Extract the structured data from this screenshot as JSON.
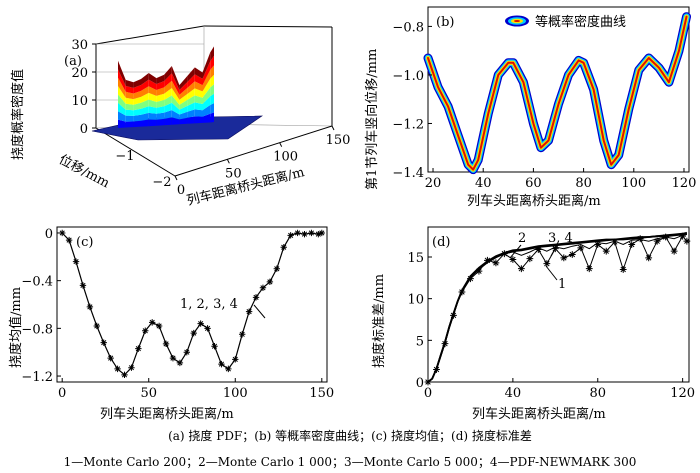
{
  "figure_caption": "(a) 挠度 PDF；(b) 等概率密度曲线；(c) 挠度均值；(d) 挠度标准差",
  "legend_caption": "1—Monte Carlo 200；2—Monte Carlo 1 000；3—Monte Carlo 5 000；4—PDF-NEWMARK 300",
  "colors": {
    "jet": [
      "#00008f",
      "#0000ff",
      "#0080ff",
      "#00ffff",
      "#80ff80",
      "#ffff00",
      "#ff8000",
      "#ff0000",
      "#800000"
    ],
    "band_outer": "#0000cc",
    "band_mid": "#00ccff",
    "band_inner": "#ffdd00",
    "band_core": "#dd1100",
    "line": "#000000"
  },
  "chart_data": [
    {
      "id": "a",
      "panel_label": "(a)",
      "type": "surface3d",
      "zlabel": "挠度概率密度值",
      "ylabel": "位移/mm",
      "xlabel": "列车距离桥头距离/m",
      "z_ticks": [
        "0",
        "10",
        "20",
        "30"
      ],
      "y_ticks": [
        "-2",
        "-1"
      ],
      "x_ticks": [
        "0",
        "50",
        "100",
        "150"
      ],
      "zlim": [
        0,
        30
      ],
      "ylim": [
        -2,
        0
      ],
      "xlim": [
        0,
        150
      ],
      "x": [
        20,
        28,
        36,
        44,
        52,
        60,
        68,
        76,
        84,
        92,
        100,
        108,
        116,
        120
      ],
      "peak_pdf": [
        24,
        17,
        16,
        17,
        19,
        17,
        18,
        21,
        14,
        17,
        20,
        18,
        25,
        27
      ]
    },
    {
      "id": "b",
      "panel_label": "(b)",
      "type": "contour",
      "ylabel": "第1节列车竖向位移/mm",
      "xlabel": "列车头距离桥头距离/m",
      "legend": "等概率密度曲线",
      "x_ticks": [
        "20",
        "40",
        "60",
        "80",
        "100",
        "120"
      ],
      "y_ticks": [
        "-0.8",
        "-1.0",
        "-1.2",
        "-1.4"
      ],
      "xlim": [
        18,
        122
      ],
      "ylim": [
        -1.4,
        -0.72
      ],
      "x": [
        18,
        22,
        26,
        30,
        34,
        36,
        38,
        42,
        46,
        50,
        52,
        56,
        60,
        63,
        66,
        70,
        74,
        78,
        80,
        84,
        88,
        91,
        94,
        98,
        102,
        106,
        110,
        114,
        118,
        121
      ],
      "y": [
        -0.93,
        -1.05,
        -1.13,
        -1.25,
        -1.37,
        -1.39,
        -1.35,
        -1.16,
        -1.0,
        -0.95,
        -0.95,
        -1.03,
        -1.2,
        -1.3,
        -1.27,
        -1.12,
        -1.0,
        -0.94,
        -0.95,
        -1.06,
        -1.27,
        -1.37,
        -1.33,
        -1.14,
        -0.98,
        -0.93,
        -0.97,
        -1.03,
        -0.9,
        -0.76
      ]
    },
    {
      "id": "c",
      "panel_label": "(c)",
      "type": "line",
      "ylabel": "挠度均值/mm",
      "xlabel": "列车头距离桥头距离/m",
      "annotation": "1, 2, 3, 4",
      "x_ticks": [
        "0",
        "50",
        "100",
        "150"
      ],
      "y_ticks": [
        "0",
        "-0.4",
        "-0.8",
        "-1.2"
      ],
      "xlim": [
        -3,
        153
      ],
      "ylim": [
        -1.25,
        0.05
      ],
      "x": [
        0,
        4,
        8,
        12,
        16,
        20,
        24,
        28,
        32,
        36,
        40,
        44,
        48,
        52,
        56,
        60,
        64,
        68,
        72,
        76,
        80,
        84,
        88,
        92,
        96,
        100,
        104,
        108,
        112,
        116,
        120,
        124,
        128,
        132,
        136,
        140,
        144,
        148,
        150
      ],
      "y": [
        0,
        -0.06,
        -0.24,
        -0.44,
        -0.62,
        -0.78,
        -0.92,
        -1.05,
        -1.14,
        -1.19,
        -1.13,
        -0.97,
        -0.82,
        -0.75,
        -0.78,
        -0.93,
        -1.05,
        -1.09,
        -1.0,
        -0.84,
        -0.76,
        -0.8,
        -0.95,
        -1.1,
        -1.14,
        -1.06,
        -0.85,
        -0.66,
        -0.54,
        -0.46,
        -0.41,
        -0.3,
        -0.12,
        -0.02,
        0,
        -0.01,
        0,
        -0.01,
        0
      ]
    },
    {
      "id": "d",
      "panel_label": "(d)",
      "type": "line",
      "ylabel": "挠度标准差/mm",
      "xlabel": "列车头距离桥头距离/m",
      "x_ticks": [
        "0",
        "40",
        "80",
        "120"
      ],
      "y_ticks": [
        "0",
        "5",
        "10",
        "15"
      ],
      "xlim": [
        0,
        123
      ],
      "ylim": [
        0,
        18.6
      ],
      "curve_labels": [
        "2",
        "3, 4",
        "1"
      ],
      "x": [
        0,
        2,
        4,
        6,
        8,
        10,
        12,
        14,
        16,
        20,
        24,
        28,
        32,
        36,
        40,
        44,
        48,
        52,
        56,
        60,
        64,
        68,
        72,
        76,
        80,
        84,
        88,
        92,
        96,
        100,
        104,
        108,
        112,
        116,
        120,
        122
      ],
      "series": [
        {
          "name": "1",
          "marker": "star",
          "values": [
            0,
            0.4,
            1.5,
            3.0,
            4.6,
            6.4,
            8.0,
            9.6,
            10.8,
            12.4,
            13.3,
            14.6,
            14.3,
            15.4,
            14.7,
            13.6,
            14.8,
            15.9,
            14.2,
            16.0,
            14.9,
            15.3,
            16.1,
            13.6,
            16.5,
            15.7,
            16.8,
            13.5,
            16.5,
            17.2,
            14.9,
            16.9,
            17.4,
            15.7,
            17.5,
            16.9
          ]
        },
        {
          "name": "2",
          "marker": "none",
          "values": [
            0,
            0.4,
            1.6,
            3.1,
            4.7,
            6.5,
            8.1,
            9.6,
            10.8,
            12.5,
            13.5,
            14.3,
            14.9,
            15.4,
            15.6,
            15.2,
            15.6,
            16.1,
            15.7,
            16.2,
            16.0,
            16.3,
            16.5,
            16.0,
            16.7,
            16.6,
            16.9,
            16.5,
            17.0,
            17.1,
            16.9,
            17.2,
            17.4,
            17.2,
            17.6,
            17.7
          ]
        },
        {
          "name": "3",
          "marker": "none",
          "values": [
            0,
            0.4,
            1.6,
            3.2,
            4.8,
            6.6,
            8.2,
            9.7,
            10.9,
            12.6,
            13.6,
            14.4,
            15.0,
            15.4,
            15.7,
            15.8,
            16.0,
            16.2,
            16.3,
            16.4,
            16.5,
            16.6,
            16.7,
            16.8,
            16.9,
            17.0,
            17.1,
            17.1,
            17.2,
            17.3,
            17.4,
            17.5,
            17.5,
            17.6,
            17.7,
            17.8
          ]
        },
        {
          "name": "4",
          "marker": "none",
          "values": [
            0,
            0.4,
            1.6,
            3.2,
            4.8,
            6.6,
            8.2,
            9.7,
            11.0,
            12.7,
            13.7,
            14.5,
            15.1,
            15.5,
            15.8,
            15.9,
            16.1,
            16.3,
            16.4,
            16.5,
            16.6,
            16.7,
            16.8,
            16.9,
            17.0,
            17.1,
            17.1,
            17.2,
            17.3,
            17.4,
            17.4,
            17.5,
            17.6,
            17.7,
            17.8,
            17.9
          ]
        }
      ]
    }
  ]
}
